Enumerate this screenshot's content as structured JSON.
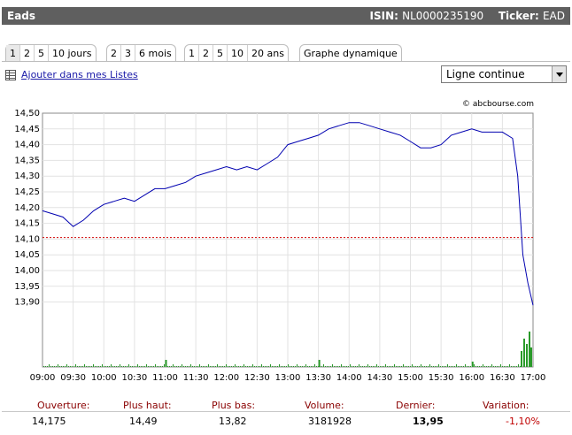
{
  "header": {
    "stock_name": "Eads",
    "isin_label": "ISIN:",
    "isin_value": "NL0000235190",
    "ticker_label": "Ticker:",
    "ticker_value": "EAD"
  },
  "tabs": {
    "group1": [
      "1",
      "2",
      "5",
      "10 jours"
    ],
    "group2": [
      "2",
      "3",
      "6 mois"
    ],
    "group3": [
      "1",
      "2",
      "5",
      "10",
      "20 ans"
    ],
    "group4": [
      "Graphe dynamique"
    ],
    "active": "1"
  },
  "list_link": {
    "icon": "list-icon",
    "label": "Ajouter dans mes Listes"
  },
  "chart_type_select": {
    "value": "Ligne continue"
  },
  "credit": "© abcbourse.com",
  "chart_data": {
    "type": "line",
    "title": "",
    "xlabel": "",
    "ylabel": "",
    "y_ticks": [
      "14,50",
      "14,45",
      "14,40",
      "14,35",
      "14,30",
      "14,25",
      "14,20",
      "14,15",
      "14,10",
      "14,05",
      "14,00",
      "13,95",
      "13,90"
    ],
    "x_ticks": [
      "09:00",
      "09:30",
      "10:00",
      "10:30",
      "11:00",
      "11:30",
      "12:00",
      "12:30",
      "13:00",
      "13:30",
      "14:00",
      "14:30",
      "15:00",
      "15:30",
      "16:00",
      "16:30",
      "17:00"
    ],
    "ylim": [
      13.85,
      14.5
    ],
    "reference_line": 14.105,
    "grid": true,
    "colors": {
      "price": "#0000b0",
      "reference": "#d00000",
      "volume": "#2a9a2a"
    },
    "x": [
      "09:00",
      "09:10",
      "09:20",
      "09:30",
      "09:40",
      "09:50",
      "10:00",
      "10:10",
      "10:20",
      "10:30",
      "10:40",
      "10:50",
      "11:00",
      "11:10",
      "11:20",
      "11:30",
      "11:40",
      "11:50",
      "12:00",
      "12:10",
      "12:20",
      "12:30",
      "12:40",
      "12:50",
      "13:00",
      "13:10",
      "13:20",
      "13:30",
      "13:40",
      "13:50",
      "14:00",
      "14:10",
      "14:20",
      "14:30",
      "14:40",
      "14:50",
      "15:00",
      "15:10",
      "15:20",
      "15:30",
      "15:40",
      "15:50",
      "16:00",
      "16:10",
      "16:20",
      "16:30",
      "16:40",
      "16:45",
      "16:50",
      "16:55",
      "17:00"
    ],
    "price": [
      14.19,
      14.18,
      14.17,
      14.14,
      14.16,
      14.19,
      14.21,
      14.22,
      14.23,
      14.22,
      14.24,
      14.26,
      14.26,
      14.27,
      14.28,
      14.3,
      14.31,
      14.32,
      14.33,
      14.32,
      14.33,
      14.32,
      14.34,
      14.36,
      14.4,
      14.41,
      14.42,
      14.43,
      14.45,
      14.46,
      14.47,
      14.47,
      14.46,
      14.45,
      14.44,
      14.43,
      14.41,
      14.39,
      14.39,
      14.4,
      14.43,
      14.44,
      14.45,
      14.44,
      14.44,
      14.44,
      14.42,
      14.3,
      14.05,
      13.96,
      13.89
    ],
    "volume_note": "volume bars shown at bottom of chart"
  },
  "stats": {
    "labels": [
      "Ouverture:",
      "Plus haut:",
      "Plus bas:",
      "Volume:",
      "Dernier:",
      "Variation:"
    ],
    "values": [
      "14,175",
      "14,49",
      "13,82",
      "3181928",
      "13,95",
      "-1,10%"
    ]
  }
}
